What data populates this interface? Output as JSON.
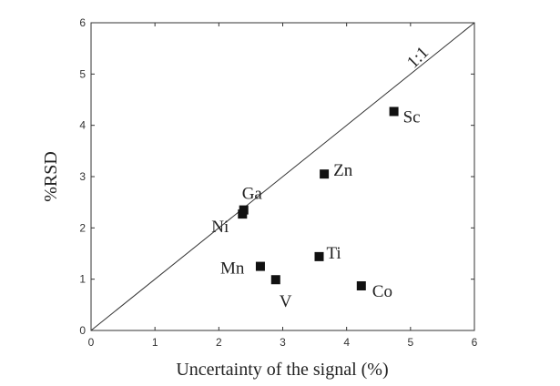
{
  "chart_data": {
    "type": "scatter",
    "xlabel": "Uncertainty of the signal (%)",
    "ylabel": "%RSD",
    "xlim": [
      0,
      6
    ],
    "ylim": [
      0,
      6
    ],
    "xticks": [
      "0",
      "1",
      "2",
      "3",
      "4",
      "5",
      "6"
    ],
    "yticks": [
      "0",
      "1",
      "2",
      "3",
      "4",
      "5",
      "6"
    ],
    "grid": false,
    "reference_line": {
      "label": "1:1",
      "from": [
        0,
        0
      ],
      "to": [
        6,
        6
      ]
    },
    "points": [
      {
        "label": "Sc",
        "x": 4.74,
        "y": 4.27
      },
      {
        "label": "Zn",
        "x": 3.65,
        "y": 3.05
      },
      {
        "label": "Ga",
        "x": 2.39,
        "y": 2.35
      },
      {
        "label": "Ni",
        "x": 2.37,
        "y": 2.27
      },
      {
        "label": "Ti",
        "x": 3.57,
        "y": 1.44
      },
      {
        "label": "Mn",
        "x": 2.65,
        "y": 1.25
      },
      {
        "label": "V",
        "x": 2.89,
        "y": 0.99
      },
      {
        "label": "Co",
        "x": 4.23,
        "y": 0.87
      }
    ],
    "marker_color": "#111111"
  }
}
